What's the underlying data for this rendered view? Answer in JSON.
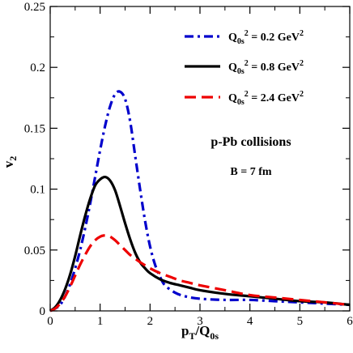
{
  "chart_data": {
    "type": "line",
    "xlim": [
      0,
      6
    ],
    "ylim": [
      0,
      0.25
    ],
    "x_ticks": [
      0,
      1,
      2,
      3,
      4,
      5,
      6
    ],
    "y_ticks": [
      0,
      0.05,
      0.1,
      0.15,
      0.2,
      0.25
    ],
    "x_tick_labels": [
      "0",
      "1",
      "2",
      "3",
      "4",
      "5",
      "6"
    ],
    "y_tick_labels": [
      "0",
      "0.05",
      "0.1",
      "0.15",
      "0.2",
      "0.25"
    ],
    "xlabel": {
      "base": "p",
      "sub1": "T",
      "mid": "/Q",
      "sub2": "0s"
    },
    "ylabel": {
      "base": "v",
      "sub": "2"
    },
    "grid": false,
    "legend_position": "top-right",
    "annotations": [
      "p-Pb collisions",
      "B = 7 fm"
    ],
    "series": [
      {
        "name": "Q0s^2 = 0.2 GeV^2",
        "legend": {
          "base": "Q",
          "sub": "0s",
          "sup": "2",
          "rest": " = 0.2 GeV",
          "sup2": "2"
        },
        "color": "#0000cc",
        "dash": "dashdot",
        "x": [
          0,
          0.1,
          0.2,
          0.3,
          0.4,
          0.5,
          0.6,
          0.7,
          0.8,
          0.9,
          1.0,
          1.1,
          1.2,
          1.3,
          1.4,
          1.5,
          1.6,
          1.7,
          1.8,
          1.9,
          2.0,
          2.1,
          2.2,
          2.3,
          2.5,
          2.7,
          3.0,
          3.5,
          4.0,
          4.5,
          5.0,
          5.5,
          6.0
        ],
        "y": [
          0,
          0.002,
          0.005,
          0.012,
          0.022,
          0.035,
          0.05,
          0.068,
          0.088,
          0.11,
          0.132,
          0.152,
          0.168,
          0.178,
          0.18,
          0.174,
          0.156,
          0.128,
          0.1,
          0.074,
          0.053,
          0.038,
          0.028,
          0.021,
          0.015,
          0.012,
          0.01,
          0.009,
          0.009,
          0.008,
          0.007,
          0.006,
          0.005
        ]
      },
      {
        "name": "Q0s^2 = 0.8 GeV^2",
        "legend": {
          "base": "Q",
          "sub": "0s",
          "sup": "2",
          "rest": " = 0.8 GeV",
          "sup2": "2"
        },
        "color": "#000000",
        "dash": "solid",
        "x": [
          0,
          0.1,
          0.2,
          0.3,
          0.4,
          0.5,
          0.6,
          0.7,
          0.8,
          0.9,
          1.0,
          1.1,
          1.2,
          1.3,
          1.4,
          1.5,
          1.6,
          1.7,
          1.8,
          1.9,
          2.0,
          2.2,
          2.4,
          2.6,
          2.8,
          3.0,
          3.5,
          4.0,
          4.5,
          5.0,
          5.5,
          6.0
        ],
        "y": [
          0,
          0.003,
          0.009,
          0.018,
          0.03,
          0.045,
          0.062,
          0.078,
          0.092,
          0.103,
          0.108,
          0.11,
          0.107,
          0.099,
          0.086,
          0.072,
          0.059,
          0.048,
          0.04,
          0.035,
          0.031,
          0.026,
          0.023,
          0.021,
          0.019,
          0.017,
          0.014,
          0.012,
          0.01,
          0.008,
          0.007,
          0.005
        ]
      },
      {
        "name": "Q0s^2 = 2.4 GeV^2",
        "legend": {
          "base": "Q",
          "sub": "0s",
          "sup": "2",
          "rest": " = 2.4 GeV",
          "sup2": "2"
        },
        "color": "#ee0000",
        "dash": "dashed",
        "x": [
          0,
          0.1,
          0.2,
          0.3,
          0.4,
          0.5,
          0.6,
          0.7,
          0.8,
          0.9,
          1.0,
          1.1,
          1.2,
          1.3,
          1.4,
          1.5,
          1.6,
          1.7,
          1.8,
          2.0,
          2.2,
          2.4,
          2.6,
          2.8,
          3.0,
          3.5,
          4.0,
          4.5,
          5.0,
          5.5,
          6.0
        ],
        "y": [
          0,
          0.002,
          0.006,
          0.012,
          0.02,
          0.029,
          0.038,
          0.046,
          0.053,
          0.058,
          0.061,
          0.062,
          0.061,
          0.058,
          0.054,
          0.05,
          0.046,
          0.043,
          0.04,
          0.035,
          0.031,
          0.028,
          0.025,
          0.023,
          0.021,
          0.017,
          0.013,
          0.011,
          0.009,
          0.007,
          0.005
        ]
      }
    ]
  }
}
